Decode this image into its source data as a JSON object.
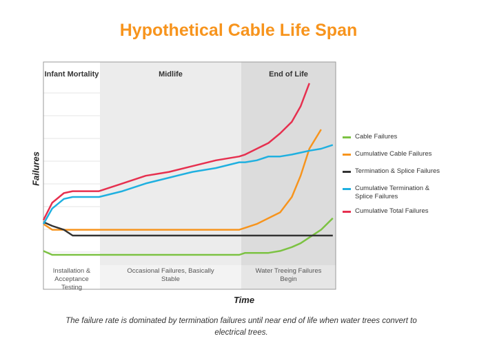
{
  "chart_data": {
    "type": "line",
    "title": "Hypothetical Cable Life Span",
    "x_label": "Time",
    "y_label": "Failures",
    "caption": "The failure rate is dominated by termination failures until near end of life  when water trees convert to electrical trees.",
    "phases": [
      {
        "label": "Infant Mortality",
        "note": "Installation & Acceptance Testing"
      },
      {
        "label": "Midlife",
        "note": "Occasional Failures, Basically Stable"
      },
      {
        "label": "End of Life",
        "note": "Water Treeing Failures Begin"
      }
    ],
    "xlim": [
      0,
      100
    ],
    "ylim": [
      0,
      100
    ],
    "x": [
      0,
      3,
      7,
      10,
      13,
      19,
      27,
      35,
      43,
      51,
      59,
      67,
      69,
      73,
      77,
      81,
      85,
      88,
      91,
      95,
      99
    ],
    "series": [
      {
        "name": "Cable Failures",
        "color": "#7cc242",
        "values": [
          2,
          0,
          0,
          0,
          0,
          0,
          0,
          0,
          0,
          0,
          0,
          0,
          1,
          1,
          1,
          2,
          4,
          6,
          9,
          13,
          19
        ]
      },
      {
        "name": "Cumulative Cable Failures",
        "color": "#f7941d",
        "values": [
          16,
          13,
          13,
          13,
          13,
          13,
          13,
          13,
          13,
          13,
          13,
          13,
          14,
          16,
          19,
          22,
          30,
          41,
          55,
          65,
          null
        ]
      },
      {
        "name": "Termination & Splice Failures",
        "color": "#333333",
        "values": [
          17,
          15,
          13,
          10,
          10,
          10,
          10,
          10,
          10,
          10,
          10,
          10,
          10,
          10,
          10,
          10,
          10,
          10,
          10,
          10,
          10
        ]
      },
      {
        "name": "Cumulative Termination & Splice Failures",
        "color": "#1fb0e0",
        "values": [
          16,
          24,
          29,
          30,
          30,
          30,
          33,
          37,
          40,
          43,
          45,
          48,
          48,
          49,
          51,
          51,
          52,
          53,
          54,
          55,
          57
        ]
      },
      {
        "name": "Cumulative Total Failures",
        "color": "#e6304f",
        "values": [
          18,
          27,
          32,
          33,
          33,
          33,
          37,
          41,
          43,
          46,
          49,
          51,
          52,
          55,
          58,
          63,
          69,
          77,
          89,
          null,
          null
        ]
      }
    ]
  }
}
